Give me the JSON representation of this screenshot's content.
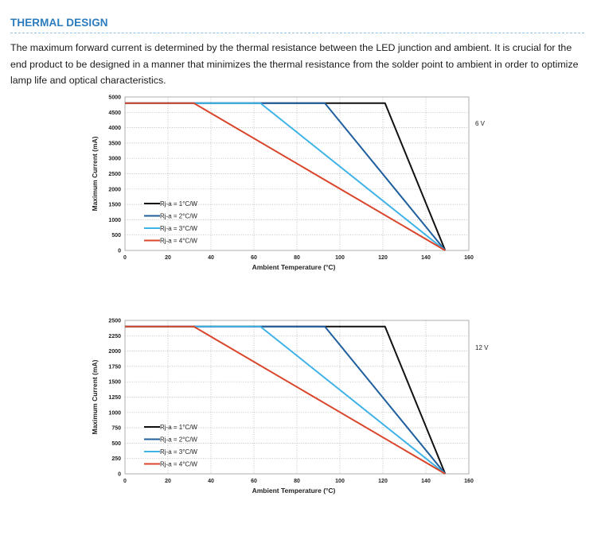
{
  "section": {
    "title": "THERMAL DESIGN",
    "intro": "The maximum forward current is determined by the thermal resistance between the LED junction and ambient. It is crucial for the end product to be designed in a manner that minimizes the thermal resistance from the solder point to ambient in order to optimize lamp life and optical characteristics."
  },
  "colors": {
    "title": "#2b7bbf",
    "series": [
      "#111111",
      "#1f5f9e",
      "#3fb3e8",
      "#d9462b"
    ]
  },
  "chart_data": [
    {
      "type": "line",
      "title": "",
      "annotation": "6 V",
      "xlabel": "Ambient Temperature (°C)",
      "ylabel": "Maximum Current (mA)",
      "xlim": [
        0,
        160
      ],
      "ylim": [
        0,
        5000
      ],
      "x_ticks": [
        "0",
        "20",
        "40",
        "60",
        "80",
        "100",
        "120",
        "140",
        "160"
      ],
      "y_ticks": [
        "0",
        "500",
        "1000",
        "1500",
        "2000",
        "2500",
        "3000",
        "3500",
        "4000",
        "4500",
        "5000"
      ],
      "grid": "dotted",
      "legend_position": "lower-left",
      "series": [
        {
          "name": "Rj-a = 1°C/W",
          "x": [
            0,
            121,
            149
          ],
          "y": [
            4800,
            4800,
            0
          ]
        },
        {
          "name": "Rj-a = 2°C/W",
          "x": [
            0,
            93,
            149
          ],
          "y": [
            4800,
            4800,
            0
          ]
        },
        {
          "name": "Rj-a = 3°C/W",
          "x": [
            0,
            63,
            149
          ],
          "y": [
            4800,
            4800,
            0
          ]
        },
        {
          "name": "Rj-a = 4°C/W",
          "x": [
            0,
            32,
            149
          ],
          "y": [
            4800,
            4800,
            0
          ]
        }
      ]
    },
    {
      "type": "line",
      "title": "",
      "annotation": "12 V",
      "xlabel": "Ambient Temperature (°C)",
      "ylabel": "Maximum Current (mA)",
      "xlim": [
        0,
        160
      ],
      "ylim": [
        0,
        2500
      ],
      "x_ticks": [
        "0",
        "20",
        "40",
        "60",
        "80",
        "100",
        "120",
        "140",
        "160"
      ],
      "y_ticks": [
        "0",
        "250",
        "500",
        "750",
        "1000",
        "1250",
        "1500",
        "1750",
        "2000",
        "2250",
        "2500"
      ],
      "grid": "dotted",
      "legend_position": "lower-left",
      "series": [
        {
          "name": "Rj-a = 1°C/W",
          "x": [
            0,
            121,
            149
          ],
          "y": [
            2400,
            2400,
            0
          ]
        },
        {
          "name": "Rj-a = 2°C/W",
          "x": [
            0,
            93,
            149
          ],
          "y": [
            2400,
            2400,
            0
          ]
        },
        {
          "name": "Rj-a = 3°C/W",
          "x": [
            0,
            63,
            149
          ],
          "y": [
            2400,
            2400,
            0
          ]
        },
        {
          "name": "Rj-a = 4°C/W",
          "x": [
            0,
            32,
            149
          ],
          "y": [
            2400,
            2400,
            0
          ]
        }
      ]
    }
  ]
}
